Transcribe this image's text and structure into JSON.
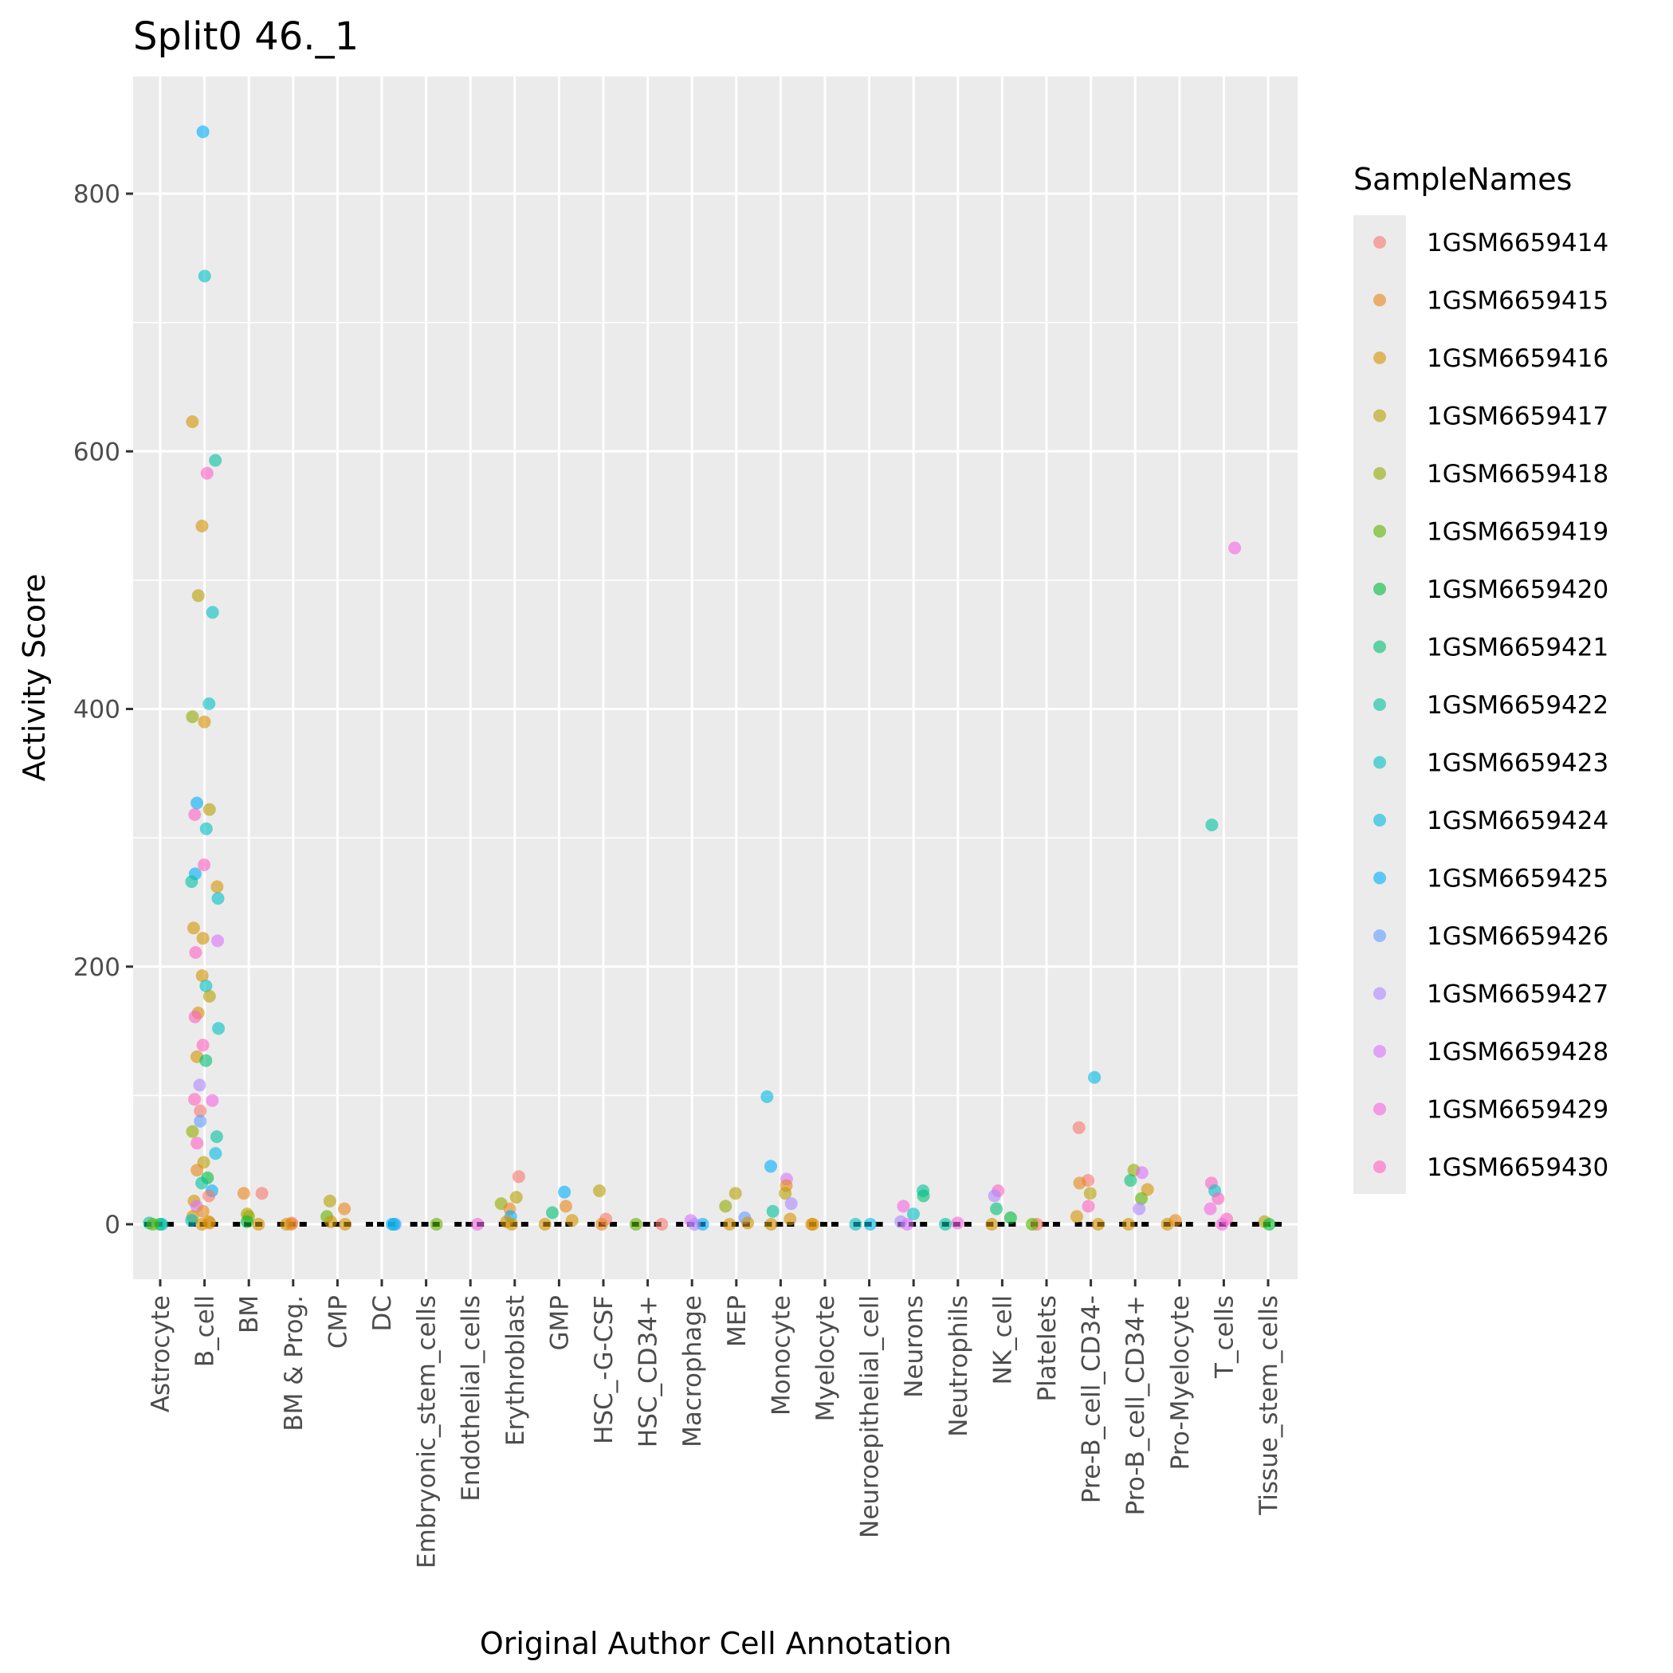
{
  "chart_data": {
    "type": "scatter",
    "title": "Split0 46._1",
    "xlabel": "Original Author Cell Annotation",
    "ylabel": "Activity Score",
    "ylim": [
      -70,
      880
    ],
    "yticks": [
      0,
      200,
      400,
      600,
      800
    ],
    "grid": true,
    "legend_position": "right",
    "legend": {
      "title": "SampleNames",
      "entries": [
        {
          "name": "1GSM6659414",
          "color": "#F8766D"
        },
        {
          "name": "1GSM6659415",
          "color": "#E7861B"
        },
        {
          "name": "1GSM6659416",
          "color": "#D39200"
        },
        {
          "name": "1GSM6659417",
          "color": "#B79F00"
        },
        {
          "name": "1GSM6659418",
          "color": "#93AA00"
        },
        {
          "name": "1GSM6659419",
          "color": "#5EB300"
        },
        {
          "name": "1GSM6659420",
          "color": "#00BA38"
        },
        {
          "name": "1GSM6659421",
          "color": "#00BF74"
        },
        {
          "name": "1GSM6659422",
          "color": "#00C19F"
        },
        {
          "name": "1GSM6659423",
          "color": "#00BFC4"
        },
        {
          "name": "1GSM6659424",
          "color": "#00B9E3"
        },
        {
          "name": "1GSM6659425",
          "color": "#00ADFA"
        },
        {
          "name": "1GSM6659426",
          "color": "#619CFF"
        },
        {
          "name": "1GSM6659427",
          "color": "#AE87FF"
        },
        {
          "name": "1GSM6659428",
          "color": "#DB72FB"
        },
        {
          "name": "1GSM6659429",
          "color": "#F564E3"
        },
        {
          "name": "1GSM6659430",
          "color": "#FF61C3"
        }
      ]
    },
    "categories": [
      "Astrocyte",
      "B_cell",
      "BM",
      "BM & Prog.",
      "CMP",
      "DC",
      "Embryonic_stem_cells",
      "Endothelial_cells",
      "Erythroblast",
      "GMP",
      "HSC_-G-CSF",
      "HSC_CD34+",
      "Macrophage",
      "MEP",
      "Monocyte",
      "Myelocyte",
      "Neuroepithelial_cell",
      "Neurons",
      "Neutrophils",
      "NK_cell",
      "Platelets",
      "Pre-B_cell_CD34-",
      "Pro-B_cell_CD34+",
      "Pro-Myelocyte",
      "T_cells",
      "Tissue_stem_cells"
    ],
    "points": [
      {
        "category": "Astrocyte",
        "sample": "1GSM6659420",
        "y": 0
      },
      {
        "category": "Astrocyte",
        "sample": "1GSM6659423",
        "y": 0
      },
      {
        "category": "Astrocyte",
        "sample": "1GSM6659422",
        "y": 1
      },
      {
        "category": "Astrocyte",
        "sample": "1GSM6659419",
        "y": 0
      },
      {
        "category": "B_cell",
        "sample": "1GSM6659425",
        "y": 848
      },
      {
        "category": "B_cell",
        "sample": "1GSM6659423",
        "y": 736
      },
      {
        "category": "B_cell",
        "sample": "1GSM6659416",
        "y": 623
      },
      {
        "category": "B_cell",
        "sample": "1GSM6659422",
        "y": 593
      },
      {
        "category": "B_cell",
        "sample": "1GSM6659430",
        "y": 583
      },
      {
        "category": "B_cell",
        "sample": "1GSM6659416",
        "y": 542
      },
      {
        "category": "B_cell",
        "sample": "1GSM6659417",
        "y": 488
      },
      {
        "category": "B_cell",
        "sample": "1GSM6659423",
        "y": 475
      },
      {
        "category": "B_cell",
        "sample": "1GSM6659423",
        "y": 404
      },
      {
        "category": "B_cell",
        "sample": "1GSM6659418",
        "y": 394
      },
      {
        "category": "B_cell",
        "sample": "1GSM6659416",
        "y": 390
      },
      {
        "category": "B_cell",
        "sample": "1GSM6659425",
        "y": 327
      },
      {
        "category": "B_cell",
        "sample": "1GSM6659417",
        "y": 322
      },
      {
        "category": "B_cell",
        "sample": "1GSM6659430",
        "y": 318
      },
      {
        "category": "B_cell",
        "sample": "1GSM6659423",
        "y": 307
      },
      {
        "category": "B_cell",
        "sample": "1GSM6659430",
        "y": 279
      },
      {
        "category": "B_cell",
        "sample": "1GSM6659425",
        "y": 272
      },
      {
        "category": "B_cell",
        "sample": "1GSM6659422",
        "y": 266
      },
      {
        "category": "B_cell",
        "sample": "1GSM6659416",
        "y": 262
      },
      {
        "category": "B_cell",
        "sample": "1GSM6659423",
        "y": 253
      },
      {
        "category": "B_cell",
        "sample": "1GSM6659416",
        "y": 230
      },
      {
        "category": "B_cell",
        "sample": "1GSM6659416",
        "y": 222
      },
      {
        "category": "B_cell",
        "sample": "1GSM6659428",
        "y": 220
      },
      {
        "category": "B_cell",
        "sample": "1GSM6659430",
        "y": 211
      },
      {
        "category": "B_cell",
        "sample": "1GSM6659416",
        "y": 193
      },
      {
        "category": "B_cell",
        "sample": "1GSM6659423",
        "y": 185
      },
      {
        "category": "B_cell",
        "sample": "1GSM6659417",
        "y": 177
      },
      {
        "category": "B_cell",
        "sample": "1GSM6659416",
        "y": 164
      },
      {
        "category": "B_cell",
        "sample": "1GSM6659430",
        "y": 161
      },
      {
        "category": "B_cell",
        "sample": "1GSM6659423",
        "y": 152
      },
      {
        "category": "B_cell",
        "sample": "1GSM6659430",
        "y": 139
      },
      {
        "category": "B_cell",
        "sample": "1GSM6659416",
        "y": 130
      },
      {
        "category": "B_cell",
        "sample": "1GSM6659421",
        "y": 127
      },
      {
        "category": "B_cell",
        "sample": "1GSM6659427",
        "y": 108
      },
      {
        "category": "B_cell",
        "sample": "1GSM6659430",
        "y": 97
      },
      {
        "category": "B_cell",
        "sample": "1GSM6659429",
        "y": 96
      },
      {
        "category": "B_cell",
        "sample": "1GSM6659414",
        "y": 88
      },
      {
        "category": "B_cell",
        "sample": "1GSM6659426",
        "y": 80
      },
      {
        "category": "B_cell",
        "sample": "1GSM6659418",
        "y": 72
      },
      {
        "category": "B_cell",
        "sample": "1GSM6659422",
        "y": 68
      },
      {
        "category": "B_cell",
        "sample": "1GSM6659430",
        "y": 63
      },
      {
        "category": "B_cell",
        "sample": "1GSM6659424",
        "y": 55
      },
      {
        "category": "B_cell",
        "sample": "1GSM6659417",
        "y": 48
      },
      {
        "category": "B_cell",
        "sample": "1GSM6659415",
        "y": 42
      },
      {
        "category": "B_cell",
        "sample": "1GSM6659420",
        "y": 36
      },
      {
        "category": "B_cell",
        "sample": "1GSM6659422",
        "y": 32
      },
      {
        "category": "B_cell",
        "sample": "1GSM6659425",
        "y": 26
      },
      {
        "category": "B_cell",
        "sample": "1GSM6659414",
        "y": 22
      },
      {
        "category": "B_cell",
        "sample": "1GSM6659416",
        "y": 18
      },
      {
        "category": "B_cell",
        "sample": "1GSM6659428",
        "y": 14
      },
      {
        "category": "B_cell",
        "sample": "1GSM6659415",
        "y": 10
      },
      {
        "category": "B_cell",
        "sample": "1GSM6659416",
        "y": 6
      },
      {
        "category": "B_cell",
        "sample": "1GSM6659423",
        "y": 3
      },
      {
        "category": "B_cell",
        "sample": "1GSM6659416",
        "y": 0
      },
      {
        "category": "B_cell",
        "sample": "1GSM6659415",
        "y": 1
      },
      {
        "category": "B_cell",
        "sample": "1GSM6659416",
        "y": 2
      },
      {
        "category": "BM",
        "sample": "1GSM6659414",
        "y": 24
      },
      {
        "category": "BM",
        "sample": "1GSM6659415",
        "y": 24
      },
      {
        "category": "BM",
        "sample": "1GSM6659417",
        "y": 8
      },
      {
        "category": "BM",
        "sample": "1GSM6659418",
        "y": 6
      },
      {
        "category": "BM",
        "sample": "1GSM6659420",
        "y": 2
      },
      {
        "category": "BM",
        "sample": "1GSM6659416",
        "y": 0
      },
      {
        "category": "BM & Prog.",
        "sample": "1GSM6659414",
        "y": 1
      },
      {
        "category": "BM & Prog.",
        "sample": "1GSM6659415",
        "y": 0
      },
      {
        "category": "BM & Prog.",
        "sample": "1GSM6659416",
        "y": 0
      },
      {
        "category": "CMP",
        "sample": "1GSM6659417",
        "y": 18
      },
      {
        "category": "CMP",
        "sample": "1GSM6659415",
        "y": 12
      },
      {
        "category": "CMP",
        "sample": "1GSM6659419",
        "y": 6
      },
      {
        "category": "CMP",
        "sample": "1GSM6659416",
        "y": 2
      },
      {
        "category": "CMP",
        "sample": "1GSM6659416",
        "y": 0
      },
      {
        "category": "DC",
        "sample": "1GSM6659425",
        "y": 0
      },
      {
        "category": "DC",
        "sample": "1GSM6659426",
        "y": 0
      },
      {
        "category": "DC",
        "sample": "1GSM6659424",
        "y": 0
      },
      {
        "category": "Embryonic_stem_cells",
        "sample": "1GSM6659419",
        "y": 0
      },
      {
        "category": "Endothelial_cells",
        "sample": "1GSM6659429",
        "y": 0
      },
      {
        "category": "Erythroblast",
        "sample": "1GSM6659414",
        "y": 37
      },
      {
        "category": "Erythroblast",
        "sample": "1GSM6659417",
        "y": 21
      },
      {
        "category": "Erythroblast",
        "sample": "1GSM6659418",
        "y": 16
      },
      {
        "category": "Erythroblast",
        "sample": "1GSM6659415",
        "y": 12
      },
      {
        "category": "Erythroblast",
        "sample": "1GSM6659425",
        "y": 6
      },
      {
        "category": "Erythroblast",
        "sample": "1GSM6659416",
        "y": 2
      },
      {
        "category": "Erythroblast",
        "sample": "1GSM6659416",
        "y": 0
      },
      {
        "category": "GMP",
        "sample": "1GSM6659425",
        "y": 25
      },
      {
        "category": "GMP",
        "sample": "1GSM6659415",
        "y": 14
      },
      {
        "category": "GMP",
        "sample": "1GSM6659421",
        "y": 9
      },
      {
        "category": "GMP",
        "sample": "1GSM6659416",
        "y": 3
      },
      {
        "category": "GMP",
        "sample": "1GSM6659416",
        "y": 0
      },
      {
        "category": "HSC_-G-CSF",
        "sample": "1GSM6659417",
        "y": 26
      },
      {
        "category": "HSC_-G-CSF",
        "sample": "1GSM6659414",
        "y": 4
      },
      {
        "category": "HSC_-G-CSF",
        "sample": "1GSM6659415",
        "y": 0
      },
      {
        "category": "HSC_CD34+",
        "sample": "1GSM6659419",
        "y": 0
      },
      {
        "category": "HSC_CD34+",
        "sample": "1GSM6659414",
        "y": 0
      },
      {
        "category": "Macrophage",
        "sample": "1GSM6659428",
        "y": 3
      },
      {
        "category": "Macrophage",
        "sample": "1GSM6659425",
        "y": 0
      },
      {
        "category": "Macrophage",
        "sample": "1GSM6659427",
        "y": 0
      },
      {
        "category": "MEP",
        "sample": "1GSM6659417",
        "y": 24
      },
      {
        "category": "MEP",
        "sample": "1GSM6659418",
        "y": 14
      },
      {
        "category": "MEP",
        "sample": "1GSM6659426",
        "y": 5
      },
      {
        "category": "MEP",
        "sample": "1GSM6659416",
        "y": 1
      },
      {
        "category": "MEP",
        "sample": "1GSM6659416",
        "y": 0
      },
      {
        "category": "Monocyte",
        "sample": "1GSM6659424",
        "y": 99
      },
      {
        "category": "Monocyte",
        "sample": "1GSM6659425",
        "y": 45
      },
      {
        "category": "Monocyte",
        "sample": "1GSM6659428",
        "y": 35
      },
      {
        "category": "Monocyte",
        "sample": "1GSM6659415",
        "y": 30
      },
      {
        "category": "Monocyte",
        "sample": "1GSM6659417",
        "y": 24
      },
      {
        "category": "Monocyte",
        "sample": "1GSM6659427",
        "y": 16
      },
      {
        "category": "Monocyte",
        "sample": "1GSM6659422",
        "y": 10
      },
      {
        "category": "Monocyte",
        "sample": "1GSM6659416",
        "y": 4
      },
      {
        "category": "Monocyte",
        "sample": "1GSM6659416",
        "y": 0
      },
      {
        "category": "Myelocyte",
        "sample": "1GSM6659415",
        "y": 0
      },
      {
        "category": "Myelocyte",
        "sample": "1GSM6659416",
        "y": 0
      },
      {
        "category": "Neuroepithelial_cell",
        "sample": "1GSM6659423",
        "y": 0
      },
      {
        "category": "Neuroepithelial_cell",
        "sample": "1GSM6659424",
        "y": 0
      },
      {
        "category": "Neurons",
        "sample": "1GSM6659422",
        "y": 26
      },
      {
        "category": "Neurons",
        "sample": "1GSM6659421",
        "y": 22
      },
      {
        "category": "Neurons",
        "sample": "1GSM6659429",
        "y": 14
      },
      {
        "category": "Neurons",
        "sample": "1GSM6659423",
        "y": 8
      },
      {
        "category": "Neurons",
        "sample": "1GSM6659427",
        "y": 2
      },
      {
        "category": "Neurons",
        "sample": "1GSM6659428",
        "y": 0
      },
      {
        "category": "Neutrophils",
        "sample": "1GSM6659429",
        "y": 1
      },
      {
        "category": "Neutrophils",
        "sample": "1GSM6659422",
        "y": 0
      },
      {
        "category": "NK_cell",
        "sample": "1GSM6659430",
        "y": 26
      },
      {
        "category": "NK_cell",
        "sample": "1GSM6659427",
        "y": 22
      },
      {
        "category": "NK_cell",
        "sample": "1GSM6659421",
        "y": 12
      },
      {
        "category": "NK_cell",
        "sample": "1GSM6659420",
        "y": 5
      },
      {
        "category": "NK_cell",
        "sample": "1GSM6659416",
        "y": 0
      },
      {
        "category": "Platelets",
        "sample": "1GSM6659414",
        "y": 0
      },
      {
        "category": "Platelets",
        "sample": "1GSM6659419",
        "y": 0
      },
      {
        "category": "Pre-B_cell_CD34-",
        "sample": "1GSM6659424",
        "y": 114
      },
      {
        "category": "Pre-B_cell_CD34-",
        "sample": "1GSM6659414",
        "y": 75
      },
      {
        "category": "Pre-B_cell_CD34-",
        "sample": "1GSM6659414",
        "y": 34
      },
      {
        "category": "Pre-B_cell_CD34-",
        "sample": "1GSM6659415",
        "y": 32
      },
      {
        "category": "Pre-B_cell_CD34-",
        "sample": "1GSM6659417",
        "y": 24
      },
      {
        "category": "Pre-B_cell_CD34-",
        "sample": "1GSM6659430",
        "y": 14
      },
      {
        "category": "Pre-B_cell_CD34-",
        "sample": "1GSM6659416",
        "y": 6
      },
      {
        "category": "Pre-B_cell_CD34-",
        "sample": "1GSM6659416",
        "y": 0
      },
      {
        "category": "Pro-B_cell_CD34+",
        "sample": "1GSM6659418",
        "y": 42
      },
      {
        "category": "Pro-B_cell_CD34+",
        "sample": "1GSM6659428",
        "y": 40
      },
      {
        "category": "Pro-B_cell_CD34+",
        "sample": "1GSM6659421",
        "y": 34
      },
      {
        "category": "Pro-B_cell_CD34+",
        "sample": "1GSM6659416",
        "y": 27
      },
      {
        "category": "Pro-B_cell_CD34+",
        "sample": "1GSM6659419",
        "y": 20
      },
      {
        "category": "Pro-B_cell_CD34+",
        "sample": "1GSM6659427",
        "y": 12
      },
      {
        "category": "Pro-B_cell_CD34+",
        "sample": "1GSM6659416",
        "y": 0
      },
      {
        "category": "Pro-Myelocyte",
        "sample": "1GSM6659415",
        "y": 3
      },
      {
        "category": "Pro-Myelocyte",
        "sample": "1GSM6659416",
        "y": 0
      },
      {
        "category": "T_cells",
        "sample": "1GSM6659429",
        "y": 525
      },
      {
        "category": "T_cells",
        "sample": "1GSM6659422",
        "y": 310
      },
      {
        "category": "T_cells",
        "sample": "1GSM6659430",
        "y": 32
      },
      {
        "category": "T_cells",
        "sample": "1GSM6659423",
        "y": 26
      },
      {
        "category": "T_cells",
        "sample": "1GSM6659430",
        "y": 20
      },
      {
        "category": "T_cells",
        "sample": "1GSM6659429",
        "y": 12
      },
      {
        "category": "T_cells",
        "sample": "1GSM6659430",
        "y": 4
      },
      {
        "category": "T_cells",
        "sample": "1GSM6659429",
        "y": 0
      },
      {
        "category": "Tissue_stem_cells",
        "sample": "1GSM6659417",
        "y": 2
      },
      {
        "category": "Tissue_stem_cells",
        "sample": "1GSM6659420",
        "y": 0
      }
    ]
  }
}
